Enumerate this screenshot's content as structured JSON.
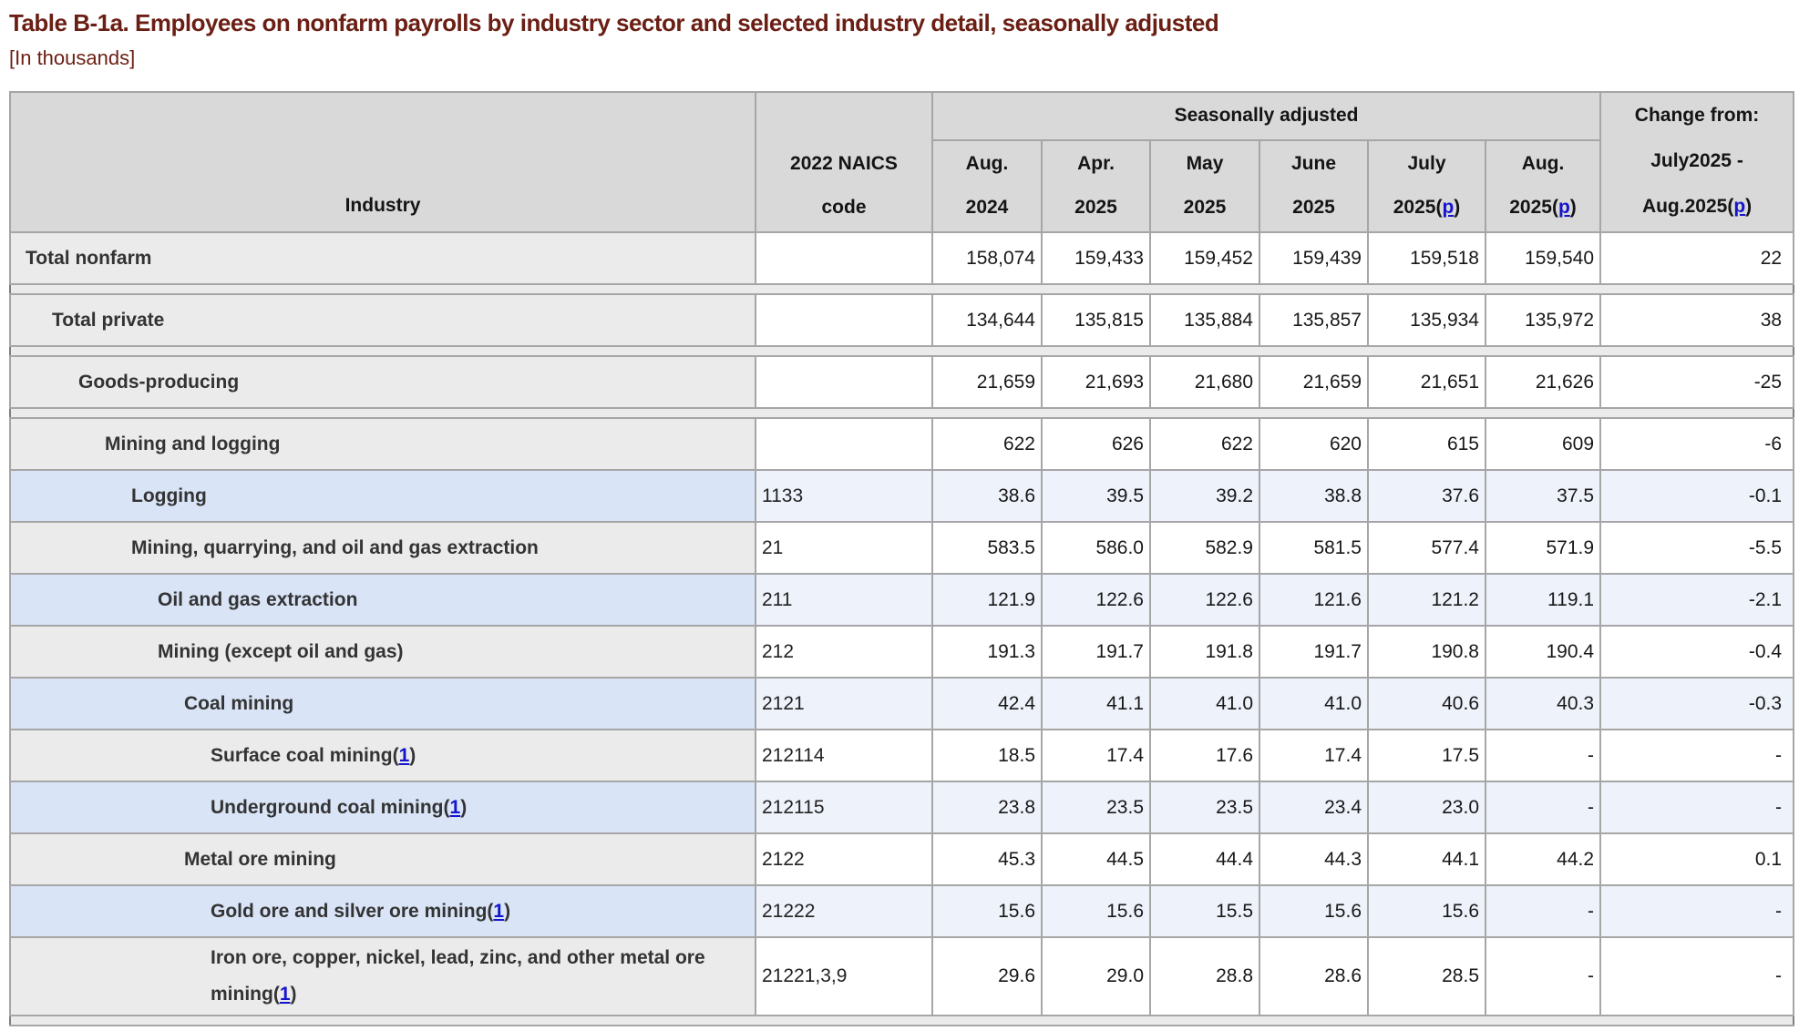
{
  "page": {
    "title": "Table B-1a. Employees on nonfarm payrolls by industry sector and selected industry detail, seasonally adjusted",
    "subtitle": "[In thousands]"
  },
  "table": {
    "industry_header": "Industry",
    "naics_header": "2022 NAICS\ncode",
    "seasonally_adjusted_label": "Seasonally adjusted",
    "prelim_link_label": "p",
    "change_header": {
      "line1": "Change from:",
      "line2": "July2025 -",
      "line3_prefix": "Aug.2025"
    },
    "columns": [
      {
        "id": "aug-2024",
        "month": "Aug.",
        "year": "2024",
        "prelim": false
      },
      {
        "id": "apr-2025",
        "month": "Apr.",
        "year": "2025",
        "prelim": false
      },
      {
        "id": "may-2025",
        "month": "May",
        "year": "2025",
        "prelim": false
      },
      {
        "id": "june-2025",
        "month": "June",
        "year": "2025",
        "prelim": false
      },
      {
        "id": "july-2025",
        "month": "July",
        "year": "2025",
        "prelim": true
      },
      {
        "id": "aug-2025",
        "month": "Aug.",
        "year": "2025",
        "prelim": true
      }
    ],
    "rows": [
      {
        "name": "Total nonfarm",
        "level": 0,
        "shade": "gray",
        "naics": "",
        "values": [
          "158,074",
          "159,433",
          "159,452",
          "159,439",
          "159,518",
          "159,540",
          "22"
        ]
      },
      {
        "separator": true
      },
      {
        "name": "Total private",
        "level": 1,
        "shade": "gray",
        "naics": "",
        "values": [
          "134,644",
          "135,815",
          "135,884",
          "135,857",
          "135,934",
          "135,972",
          "38"
        ]
      },
      {
        "separator": true
      },
      {
        "name": "Goods-producing",
        "level": 2,
        "shade": "gray",
        "naics": "",
        "values": [
          "21,659",
          "21,693",
          "21,680",
          "21,659",
          "21,651",
          "21,626",
          "-25"
        ]
      },
      {
        "separator": true
      },
      {
        "name": "Mining and logging",
        "level": 3,
        "shade": "gray",
        "naics": "",
        "values": [
          "622",
          "626",
          "622",
          "620",
          "615",
          "609",
          "-6"
        ]
      },
      {
        "name": "Logging",
        "level": 4,
        "shade": "blue",
        "naics": "1133",
        "values": [
          "38.6",
          "39.5",
          "39.2",
          "38.8",
          "37.6",
          "37.5",
          "-0.1"
        ]
      },
      {
        "name": "Mining, quarrying, and oil and gas extraction",
        "level": 4,
        "shade": "gray",
        "naics": "21",
        "values": [
          "583.5",
          "586.0",
          "582.9",
          "581.5",
          "577.4",
          "571.9",
          "-5.5"
        ]
      },
      {
        "name": "Oil and gas extraction",
        "level": 5,
        "shade": "blue",
        "naics": "211",
        "values": [
          "121.9",
          "122.6",
          "122.6",
          "121.6",
          "121.2",
          "119.1",
          "-2.1"
        ]
      },
      {
        "name": "Mining (except oil and gas)",
        "level": 5,
        "shade": "gray",
        "naics": "212",
        "values": [
          "191.3",
          "191.7",
          "191.8",
          "191.7",
          "190.8",
          "190.4",
          "-0.4"
        ]
      },
      {
        "name": "Coal mining",
        "level": 6,
        "shade": "blue",
        "naics": "2121",
        "values": [
          "42.4",
          "41.1",
          "41.0",
          "41.0",
          "40.6",
          "40.3",
          "-0.3"
        ]
      },
      {
        "name": "Surface coal mining",
        "footnote": "1",
        "level": 7,
        "shade": "gray",
        "naics": "212114",
        "values": [
          "18.5",
          "17.4",
          "17.6",
          "17.4",
          "17.5",
          "-",
          "-"
        ]
      },
      {
        "name": "Underground coal mining",
        "footnote": "1",
        "level": 7,
        "shade": "blue",
        "naics": "212115",
        "values": [
          "23.8",
          "23.5",
          "23.5",
          "23.4",
          "23.0",
          "-",
          "-"
        ]
      },
      {
        "name": "Metal ore mining",
        "level": 6,
        "shade": "gray",
        "naics": "2122",
        "values": [
          "45.3",
          "44.5",
          "44.4",
          "44.3",
          "44.1",
          "44.2",
          "0.1"
        ]
      },
      {
        "name": "Gold ore and silver ore mining",
        "footnote": "1",
        "level": 7,
        "shade": "blue",
        "naics": "21222",
        "values": [
          "15.6",
          "15.6",
          "15.5",
          "15.6",
          "15.6",
          "-",
          "-"
        ]
      },
      {
        "name": "Iron ore, copper, nickel, lead, zinc, and other metal ore mining",
        "footnote": "1",
        "level": 7,
        "shade": "gray",
        "naics": "21221,3,9",
        "values": [
          "29.6",
          "29.0",
          "28.8",
          "28.6",
          "28.5",
          "-",
          "-"
        ]
      },
      {
        "separator": true
      }
    ]
  },
  "colors": {
    "title_maroon": "#6b1f14",
    "header_bg": "#d9d9d9",
    "gray_row_bg": "#ebebeb",
    "blue_industry_bg": "#d9e4f7",
    "blue_value_bg": "#eef2fb",
    "link_blue": "#1414cc",
    "border_gray": "#a6a6a6"
  }
}
